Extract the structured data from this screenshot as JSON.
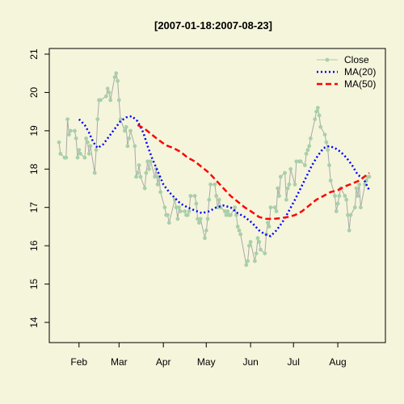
{
  "chart_data": {
    "type": "line",
    "title": "[2007-01-18:2007-08-23]",
    "xlabel": "",
    "ylabel": "",
    "x_range": [
      "2007-01-18",
      "2007-08-23"
    ],
    "ylim": [
      13.5,
      21.2
    ],
    "y_ticks": [
      14,
      15,
      16,
      17,
      18,
      19,
      20,
      21
    ],
    "x_ticks": [
      {
        "label": "Feb",
        "date": "2007-02-01"
      },
      {
        "label": "Mar",
        "date": "2007-03-01"
      },
      {
        "label": "Apr",
        "date": "2007-04-01"
      },
      {
        "label": "May",
        "date": "2007-05-01"
      },
      {
        "label": "Jun",
        "date": "2007-06-01"
      },
      {
        "label": "Jul",
        "date": "2007-07-01"
      },
      {
        "label": "Aug",
        "date": "2007-08-01"
      }
    ],
    "legend_position": "top-right",
    "colors": {
      "close": "#a8d0a8",
      "close_line": "#a8a8a8",
      "ma20": "#0000ff",
      "ma50": "#ff0000",
      "background": "#f5f5dc"
    },
    "series": [
      {
        "name": "Close",
        "style": "line-points",
        "points": [
          [
            "2007-01-18",
            18.7
          ],
          [
            "2007-01-19",
            18.4
          ],
          [
            "2007-01-22",
            18.3
          ],
          [
            "2007-01-23",
            18.3
          ],
          [
            "2007-01-24",
            19.3
          ],
          [
            "2007-01-25",
            18.9
          ],
          [
            "2007-01-26",
            19.0
          ],
          [
            "2007-01-29",
            19.0
          ],
          [
            "2007-01-30",
            18.8
          ],
          [
            "2007-01-31",
            18.3
          ],
          [
            "2007-02-01",
            18.5
          ],
          [
            "2007-02-02",
            18.4
          ],
          [
            "2007-02-05",
            18.3
          ],
          [
            "2007-02-06",
            18.8
          ],
          [
            "2007-02-07",
            18.7
          ],
          [
            "2007-02-08",
            18.4
          ],
          [
            "2007-02-09",
            18.6
          ],
          [
            "2007-02-12",
            17.9
          ],
          [
            "2007-02-13",
            18.5
          ],
          [
            "2007-02-14",
            19.3
          ],
          [
            "2007-02-15",
            19.8
          ],
          [
            "2007-02-16",
            19.8
          ],
          [
            "2007-02-20",
            19.9
          ],
          [
            "2007-02-21",
            20.1
          ],
          [
            "2007-02-22",
            20.0
          ],
          [
            "2007-02-23",
            19.8
          ],
          [
            "2007-02-26",
            20.4
          ],
          [
            "2007-02-27",
            20.5
          ],
          [
            "2007-02-28",
            20.3
          ],
          [
            "2007-03-01",
            19.8
          ],
          [
            "2007-03-02",
            19.3
          ],
          [
            "2007-03-05",
            19.0
          ],
          [
            "2007-03-06",
            19.1
          ],
          [
            "2007-03-07",
            18.6
          ],
          [
            "2007-03-08",
            18.8
          ],
          [
            "2007-03-09",
            19.0
          ],
          [
            "2007-03-12",
            18.6
          ],
          [
            "2007-03-13",
            17.8
          ],
          [
            "2007-03-14",
            17.9
          ],
          [
            "2007-03-15",
            18.1
          ],
          [
            "2007-03-16",
            17.8
          ],
          [
            "2007-03-19",
            17.5
          ],
          [
            "2007-03-20",
            17.9
          ],
          [
            "2007-03-21",
            18.2
          ],
          [
            "2007-03-22",
            18.0
          ],
          [
            "2007-03-23",
            18.2
          ],
          [
            "2007-03-26",
            17.8
          ],
          [
            "2007-03-27",
            18.0
          ],
          [
            "2007-03-28",
            17.6
          ],
          [
            "2007-03-29",
            17.8
          ],
          [
            "2007-03-30",
            17.4
          ],
          [
            "2007-04-02",
            17.0
          ],
          [
            "2007-04-03",
            16.8
          ],
          [
            "2007-04-04",
            16.8
          ],
          [
            "2007-04-05",
            16.6
          ],
          [
            "2007-04-09",
            17.2
          ],
          [
            "2007-04-10",
            17.0
          ],
          [
            "2007-04-11",
            16.7
          ],
          [
            "2007-04-12",
            17.0
          ],
          [
            "2007-04-13",
            16.9
          ],
          [
            "2007-04-16",
            16.9
          ],
          [
            "2007-04-17",
            16.8
          ],
          [
            "2007-04-18",
            16.8
          ],
          [
            "2007-04-19",
            16.9
          ],
          [
            "2007-04-20",
            17.3
          ],
          [
            "2007-04-23",
            17.3
          ],
          [
            "2007-04-24",
            17.1
          ],
          [
            "2007-04-25",
            16.7
          ],
          [
            "2007-04-26",
            16.6
          ],
          [
            "2007-04-27",
            16.7
          ],
          [
            "2007-04-30",
            16.2
          ],
          [
            "2007-05-01",
            16.4
          ],
          [
            "2007-05-02",
            16.7
          ],
          [
            "2007-05-03",
            17.2
          ],
          [
            "2007-05-04",
            17.6
          ],
          [
            "2007-05-07",
            17.6
          ],
          [
            "2007-05-08",
            17.3
          ],
          [
            "2007-05-09",
            17.0
          ],
          [
            "2007-05-10",
            17.2
          ],
          [
            "2007-05-11",
            17.0
          ],
          [
            "2007-05-14",
            16.9
          ],
          [
            "2007-05-15",
            16.8
          ],
          [
            "2007-05-16",
            16.9
          ],
          [
            "2007-05-17",
            16.8
          ],
          [
            "2007-05-18",
            16.8
          ],
          [
            "2007-05-21",
            17.0
          ],
          [
            "2007-05-22",
            16.8
          ],
          [
            "2007-05-23",
            16.5
          ],
          [
            "2007-05-24",
            16.4
          ],
          [
            "2007-05-25",
            16.3
          ],
          [
            "2007-05-29",
            15.5
          ],
          [
            "2007-05-30",
            15.6
          ],
          [
            "2007-05-31",
            16.0
          ],
          [
            "2007-06-01",
            16.1
          ],
          [
            "2007-06-04",
            15.6
          ],
          [
            "2007-06-05",
            15.8
          ],
          [
            "2007-06-06",
            16.2
          ],
          [
            "2007-06-07",
            16.1
          ],
          [
            "2007-06-08",
            15.9
          ],
          [
            "2007-06-11",
            15.8
          ],
          [
            "2007-06-12",
            16.3
          ],
          [
            "2007-06-13",
            16.6
          ],
          [
            "2007-06-14",
            16.5
          ],
          [
            "2007-06-15",
            17.0
          ],
          [
            "2007-06-18",
            17.0
          ],
          [
            "2007-06-19",
            16.9
          ],
          [
            "2007-06-20",
            17.5
          ],
          [
            "2007-06-21",
            17.3
          ],
          [
            "2007-06-22",
            17.8
          ],
          [
            "2007-06-25",
            17.9
          ],
          [
            "2007-06-26",
            17.2
          ],
          [
            "2007-06-27",
            17.5
          ],
          [
            "2007-06-28",
            17.6
          ],
          [
            "2007-06-29",
            18.0
          ],
          [
            "2007-07-02",
            17.6
          ],
          [
            "2007-07-03",
            18.2
          ],
          [
            "2007-07-05",
            18.2
          ],
          [
            "2007-07-06",
            18.2
          ],
          [
            "2007-07-09",
            18.1
          ],
          [
            "2007-07-10",
            18.4
          ],
          [
            "2007-07-11",
            18.5
          ],
          [
            "2007-07-12",
            18.6
          ],
          [
            "2007-07-13",
            18.8
          ],
          [
            "2007-07-16",
            19.3
          ],
          [
            "2007-07-17",
            19.5
          ],
          [
            "2007-07-18",
            19.6
          ],
          [
            "2007-07-19",
            19.4
          ],
          [
            "2007-07-20",
            19.1
          ],
          [
            "2007-07-23",
            18.9
          ],
          [
            "2007-07-24",
            18.7
          ],
          [
            "2007-07-25",
            18.5
          ],
          [
            "2007-07-26",
            18.1
          ],
          [
            "2007-07-27",
            17.7
          ],
          [
            "2007-07-30",
            17.3
          ],
          [
            "2007-07-31",
            16.9
          ],
          [
            "2007-08-01",
            17.1
          ],
          [
            "2007-08-02",
            17.3
          ],
          [
            "2007-08-03",
            17.5
          ],
          [
            "2007-08-06",
            17.3
          ],
          [
            "2007-08-07",
            17.2
          ],
          [
            "2007-08-08",
            16.8
          ],
          [
            "2007-08-09",
            16.4
          ],
          [
            "2007-08-10",
            16.8
          ],
          [
            "2007-08-13",
            17.0
          ],
          [
            "2007-08-14",
            17.5
          ],
          [
            "2007-08-15",
            17.3
          ],
          [
            "2007-08-16",
            17.6
          ],
          [
            "2007-08-17",
            17.0
          ],
          [
            "2007-08-20",
            17.6
          ],
          [
            "2007-08-21",
            17.7
          ],
          [
            "2007-08-22",
            17.8
          ],
          [
            "2007-08-23",
            17.8
          ]
        ]
      },
      {
        "name": "MA(20)",
        "style": "dotted",
        "points": [
          [
            "2007-02-01",
            19.3
          ],
          [
            "2007-02-05",
            19.15
          ],
          [
            "2007-02-08",
            18.95
          ],
          [
            "2007-02-11",
            18.7
          ],
          [
            "2007-02-14",
            18.55
          ],
          [
            "2007-02-18",
            18.65
          ],
          [
            "2007-02-22",
            18.85
          ],
          [
            "2007-02-26",
            19.05
          ],
          [
            "2007-03-02",
            19.25
          ],
          [
            "2007-03-06",
            19.35
          ],
          [
            "2007-03-10",
            19.38
          ],
          [
            "2007-03-14",
            19.25
          ],
          [
            "2007-03-18",
            18.95
          ],
          [
            "2007-03-21",
            18.6
          ],
          [
            "2007-03-24",
            18.3
          ],
          [
            "2007-03-28",
            17.95
          ],
          [
            "2007-04-01",
            17.6
          ],
          [
            "2007-04-05",
            17.4
          ],
          [
            "2007-04-09",
            17.25
          ],
          [
            "2007-04-13",
            17.1
          ],
          [
            "2007-04-18",
            17.0
          ],
          [
            "2007-04-23",
            16.92
          ],
          [
            "2007-04-28",
            16.85
          ],
          [
            "2007-05-03",
            16.9
          ],
          [
            "2007-05-08",
            17.0
          ],
          [
            "2007-05-13",
            17.05
          ],
          [
            "2007-05-18",
            17.0
          ],
          [
            "2007-05-23",
            16.85
          ],
          [
            "2007-05-28",
            16.75
          ],
          [
            "2007-06-02",
            16.6
          ],
          [
            "2007-06-07",
            16.4
          ],
          [
            "2007-06-11",
            16.3
          ],
          [
            "2007-06-15",
            16.25
          ],
          [
            "2007-06-19",
            16.4
          ],
          [
            "2007-06-23",
            16.6
          ],
          [
            "2007-06-27",
            16.85
          ],
          [
            "2007-07-02",
            17.2
          ],
          [
            "2007-07-06",
            17.5
          ],
          [
            "2007-07-10",
            17.8
          ],
          [
            "2007-07-14",
            18.1
          ],
          [
            "2007-07-18",
            18.35
          ],
          [
            "2007-07-22",
            18.55
          ],
          [
            "2007-07-26",
            18.6
          ],
          [
            "2007-07-30",
            18.55
          ],
          [
            "2007-08-03",
            18.45
          ],
          [
            "2007-08-07",
            18.3
          ],
          [
            "2007-08-11",
            18.1
          ],
          [
            "2007-08-15",
            17.85
          ],
          [
            "2007-08-19",
            17.75
          ],
          [
            "2007-08-23",
            17.45
          ]
        ]
      },
      {
        "name": "MA(50)",
        "style": "dashed",
        "points": [
          [
            "2007-03-14",
            19.15
          ],
          [
            "2007-03-19",
            19.05
          ],
          [
            "2007-03-24",
            18.9
          ],
          [
            "2007-03-29",
            18.75
          ],
          [
            "2007-04-03",
            18.62
          ],
          [
            "2007-04-08",
            18.55
          ],
          [
            "2007-04-13",
            18.45
          ],
          [
            "2007-04-18",
            18.3
          ],
          [
            "2007-04-23",
            18.2
          ],
          [
            "2007-04-28",
            18.05
          ],
          [
            "2007-05-03",
            17.9
          ],
          [
            "2007-05-08",
            17.7
          ],
          [
            "2007-05-13",
            17.5
          ],
          [
            "2007-05-18",
            17.3
          ],
          [
            "2007-05-23",
            17.15
          ],
          [
            "2007-05-28",
            17.0
          ],
          [
            "2007-06-02",
            16.88
          ],
          [
            "2007-06-07",
            16.75
          ],
          [
            "2007-06-12",
            16.7
          ],
          [
            "2007-06-17",
            16.7
          ],
          [
            "2007-06-22",
            16.72
          ],
          [
            "2007-06-27",
            16.75
          ],
          [
            "2007-07-02",
            16.8
          ],
          [
            "2007-07-07",
            16.9
          ],
          [
            "2007-07-12",
            17.05
          ],
          [
            "2007-07-17",
            17.2
          ],
          [
            "2007-07-22",
            17.3
          ],
          [
            "2007-07-27",
            17.4
          ],
          [
            "2007-08-01",
            17.45
          ],
          [
            "2007-08-06",
            17.55
          ],
          [
            "2007-08-11",
            17.62
          ],
          [
            "2007-08-16",
            17.7
          ],
          [
            "2007-08-23",
            17.9
          ]
        ]
      }
    ]
  }
}
